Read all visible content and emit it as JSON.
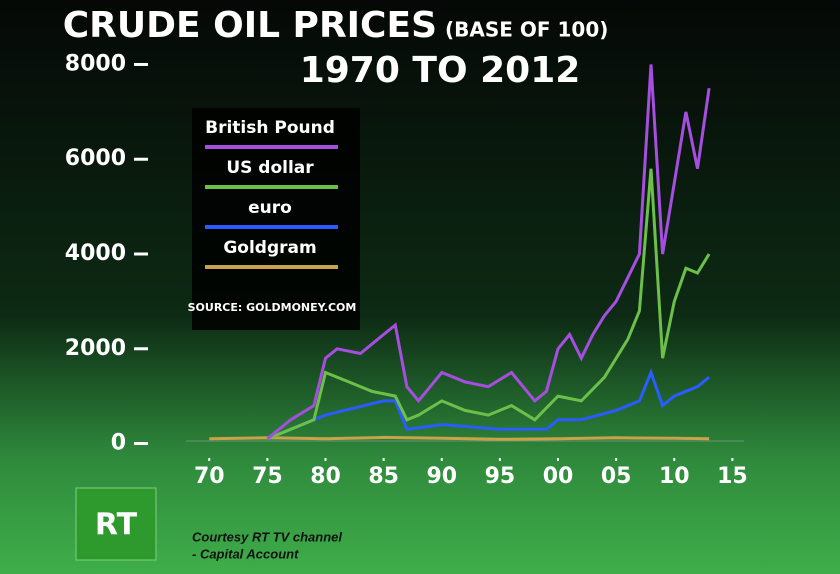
{
  "chart_data": {
    "type": "line",
    "title": "CRUDE OIL PRICES",
    "title_note": "(BASE OF 100)",
    "subtitle": "1970 TO 2012",
    "source": "SOURCE: GOLDMONEY.COM",
    "xlim": [
      1968,
      2016
    ],
    "ylim": [
      -200,
      8200
    ],
    "xticks": [
      {
        "value": 1970,
        "label": "70"
      },
      {
        "value": 1975,
        "label": "75"
      },
      {
        "value": 1980,
        "label": "80"
      },
      {
        "value": 1985,
        "label": "85"
      },
      {
        "value": 1990,
        "label": "90"
      },
      {
        "value": 1995,
        "label": "95"
      },
      {
        "value": 2000,
        "label": "00"
      },
      {
        "value": 2005,
        "label": "05"
      },
      {
        "value": 2010,
        "label": "10"
      },
      {
        "value": 2015,
        "label": "15"
      }
    ],
    "yticks": [
      0,
      2000,
      4000,
      6000,
      8000
    ],
    "series": [
      {
        "name": "British Pound",
        "color": "#a64ee0",
        "x": [
          1975,
          1977,
          1979,
          1980,
          1981,
          1983,
          1985,
          1986,
          1987,
          1988,
          1990,
          1991,
          1992,
          1994,
          1996,
          1998,
          1999,
          2000,
          2001,
          2002,
          2003,
          2004,
          2005,
          2006,
          2007,
          2008,
          2009,
          2010,
          2011,
          2012,
          2013
        ],
        "values": [
          100,
          500,
          800,
          1800,
          2000,
          1900,
          2300,
          2500,
          1200,
          900,
          1500,
          1400,
          1300,
          1200,
          1500,
          900,
          1100,
          2000,
          2300,
          1800,
          2300,
          2700,
          3000,
          3500,
          4000,
          8000,
          4000,
          5500,
          7000,
          5800,
          7500
        ]
      },
      {
        "name": "US dollar",
        "color": "#6cc04a",
        "x": [
          1975,
          1977,
          1979,
          1980,
          1982,
          1984,
          1986,
          1987,
          1988,
          1990,
          1992,
          1994,
          1996,
          1998,
          2000,
          2002,
          2004,
          2006,
          2007,
          2008,
          2009,
          2010,
          2011,
          2012,
          2013
        ],
        "values": [
          100,
          300,
          500,
          1500,
          1300,
          1100,
          1000,
          500,
          600,
          900,
          700,
          600,
          800,
          500,
          1000,
          900,
          1400,
          2200,
          2800,
          5800,
          1800,
          3000,
          3700,
          3600,
          4000
        ]
      },
      {
        "name": "euro",
        "color": "#2a5cff",
        "x": [
          1975,
          1980,
          1985,
          1986,
          1987,
          1990,
          1995,
          1999,
          2000,
          2002,
          2005,
          2007,
          2008,
          2009,
          2010,
          2012,
          2013
        ],
        "values": [
          100,
          600,
          900,
          900,
          300,
          400,
          300,
          300,
          500,
          500,
          700,
          900,
          1500,
          800,
          1000,
          1200,
          1400
        ]
      },
      {
        "name": "Goldgram",
        "color": "#c9a24a",
        "x": [
          1970,
          1975,
          1980,
          1985,
          1990,
          1995,
          2000,
          2005,
          2010,
          2013
        ],
        "values": [
          100,
          120,
          100,
          130,
          110,
          90,
          100,
          120,
          110,
          100
        ]
      }
    ]
  },
  "logo": "RT",
  "credit": [
    "Courtesy RT TV channel",
    "- Capital Account"
  ]
}
